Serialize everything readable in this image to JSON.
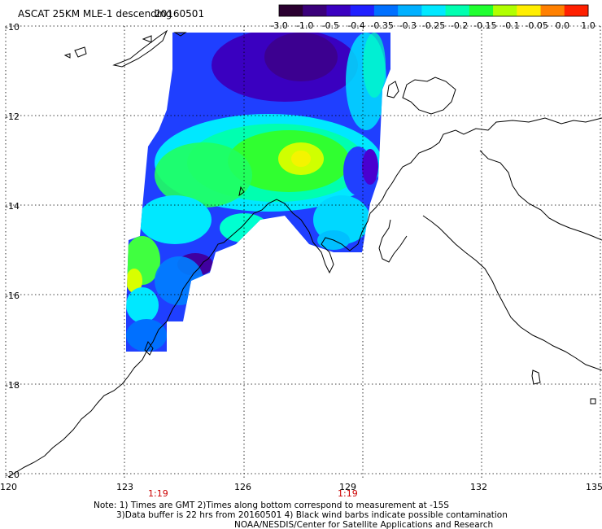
{
  "header": {
    "title": "ASCAT 25KM MLE-1 descending",
    "date": "20160501"
  },
  "colorbar": {
    "labels": [
      "-3.0",
      "-1.0",
      "-0.5",
      "-0.4",
      "-0.35",
      "-0.3",
      "-0.25",
      "-0.2",
      "-0.15",
      "-0.1",
      "-0.05",
      "0.0",
      "1.0"
    ],
    "colors": [
      "#2a0030",
      "#3a007a",
      "#3a00c0",
      "#2020ff",
      "#0070ff",
      "#00b0ff",
      "#00e8ff",
      "#00ffb0",
      "#20ff30",
      "#b0ff00",
      "#ffee00",
      "#ff8000",
      "#ff2000"
    ]
  },
  "map": {
    "lon_labels": [
      "120",
      "123",
      "126",
      "129",
      "132",
      "135"
    ],
    "lat_labels": [
      "-10",
      "-12",
      "-14",
      "-16",
      "-18",
      "-20"
    ],
    "time_labels": [
      "1:19",
      "1:19"
    ]
  },
  "footer": {
    "line1": "Note: 1) Times are GMT 2)Times along bottom correspond to measurement at -15S",
    "line2": "3)Data buffer is 22 hrs from 20160501 4) Black wind barbs indicate possible contamination",
    "line3": "NOAA/NESDIS/Center for Satellite Applications and Research"
  }
}
